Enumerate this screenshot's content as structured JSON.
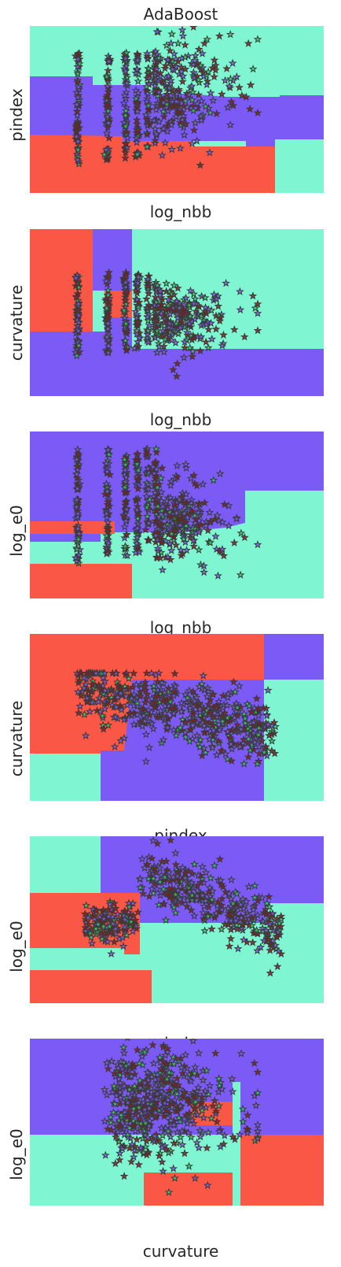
{
  "chart_data": {
    "type": "decision_boundary_scatter",
    "title": "AdaBoost",
    "palette": {
      "red": "#fb5746",
      "purple": "#7c5af6",
      "aqua": "#7ff5d2",
      "edge": "#3a3a3a"
    },
    "grid": false,
    "ticks": false,
    "legend": "none",
    "marker": "star",
    "panels": [
      {
        "xlabel": "log_nbb",
        "ylabel": "pindex"
      },
      {
        "xlabel": "log_nbb",
        "ylabel": "curvature"
      },
      {
        "xlabel": "log_nbb",
        "ylabel": "log_e0"
      },
      {
        "xlabel": "pindex",
        "ylabel": "curvature"
      },
      {
        "xlabel": "pindex",
        "ylabel": "log_e0"
      },
      {
        "xlabel": "curvature",
        "ylabel": "log_e0"
      }
    ]
  }
}
